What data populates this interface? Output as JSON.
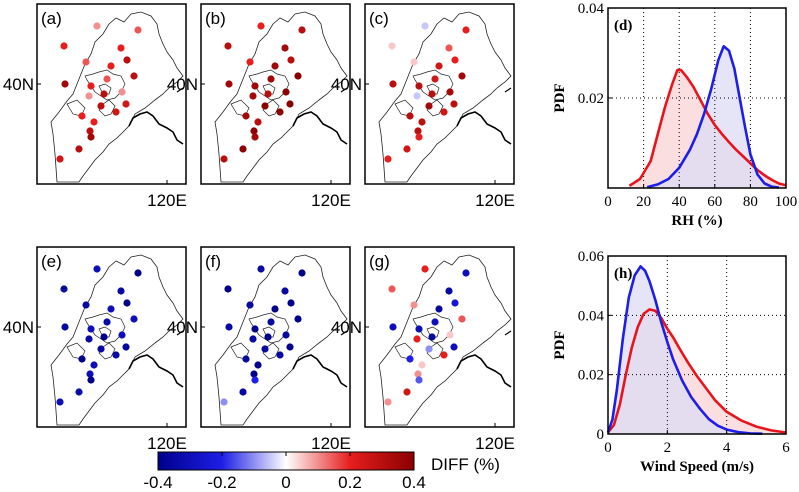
{
  "maps": {
    "lat_label": "40N",
    "lon_label": "120E",
    "panels": [
      {
        "label": "(a)",
        "values": [
          0.1,
          0.2,
          0.2,
          0.15,
          0.3,
          0.15,
          0.2,
          0.35,
          0.3,
          0.15,
          0.2,
          0.1,
          0.3,
          0.1,
          0.25,
          0.3,
          0.2,
          0.2,
          0.25,
          0.3,
          0.25,
          0.3,
          0.35
        ]
      },
      {
        "label": "(b)",
        "values": [
          0.2,
          0.3,
          0.35,
          0.3,
          0.3,
          0.2,
          0.35,
          0.35,
          0.4,
          0.35,
          0.35,
          0.35,
          0.3,
          0.4,
          0.4,
          0.4,
          0.35,
          0.3,
          0.4,
          0.4,
          0.3,
          0.4,
          0.35
        ]
      },
      {
        "label": "(c)",
        "values": [
          -0.05,
          0.05,
          0.15,
          0.2,
          0.2,
          0.05,
          0.25,
          0.3,
          0.35,
          0.25,
          0.3,
          -0.05,
          0.3,
          0.35,
          0.3,
          0.35,
          0.3,
          0.3,
          0.25,
          0.3,
          0.2,
          0.25,
          0.2
        ]
      },
      {
        "label": "(e)",
        "values": [
          -0.3,
          -0.35,
          -0.35,
          -0.4,
          -0.4,
          -0.35,
          -0.3,
          -0.35,
          -0.3,
          -0.35,
          -0.3,
          -0.35,
          -0.4,
          -0.3,
          -0.35,
          -0.35,
          -0.4,
          -0.3,
          -0.35,
          -0.3,
          -0.3,
          -0.35,
          -0.4
        ]
      },
      {
        "label": "(f)",
        "values": [
          -0.35,
          -0.4,
          -0.35,
          -0.4,
          -0.4,
          -0.35,
          -0.4,
          -0.35,
          -0.4,
          -0.35,
          -0.4,
          -0.35,
          -0.4,
          -0.35,
          -0.4,
          -0.35,
          -0.35,
          -0.4,
          -0.35,
          -0.4,
          -0.1,
          -0.35,
          -0.2
        ]
      },
      {
        "label": "(g)",
        "values": [
          0.2,
          0.15,
          -0.35,
          -0.3,
          -0.25,
          0.1,
          -0.35,
          -0.3,
          0.15,
          -0.3,
          -0.3,
          0.2,
          -0.35,
          0.05,
          -0.3,
          -0.1,
          -0.2,
          0.05,
          0.2,
          0.1,
          0.1,
          0.25,
          -0.15
        ]
      }
    ]
  },
  "colorbar": {
    "ticks": [
      "-0.4",
      "-0.2",
      "0",
      "0.2",
      "0.4"
    ],
    "min": -0.4,
    "max": 0.4,
    "label": "DIFF (%)",
    "colors": [
      "#00008b",
      "#1e1ee6",
      "#ffffff",
      "#e61e1e",
      "#8b0000"
    ]
  },
  "chart_data": [
    {
      "type": "area",
      "panel_label": "(d)",
      "xlabel": "RH (%)",
      "ylabel": "PDF",
      "xlim": [
        0,
        100
      ],
      "ylim": [
        0,
        0.04
      ],
      "xticks": [
        0,
        20,
        40,
        60,
        80,
        100
      ],
      "yticks": [
        0.02,
        0.04
      ],
      "xtick_labels": [
        "0",
        "20",
        "40",
        "60",
        "80",
        "100"
      ],
      "ytick_labels": [
        "0.02",
        "0.04"
      ],
      "grid": true,
      "series": [
        {
          "name": "red",
          "color": "#e8141c",
          "fill": "#f8d3d5",
          "x": [
            12,
            18,
            24,
            28,
            32,
            36,
            39,
            41,
            44,
            48,
            52,
            56,
            60,
            64,
            68,
            72,
            76,
            80,
            84,
            88,
            92,
            96,
            100
          ],
          "y": [
            0.0005,
            0.002,
            0.006,
            0.012,
            0.018,
            0.023,
            0.0262,
            0.0262,
            0.0248,
            0.0225,
            0.0195,
            0.0165,
            0.014,
            0.012,
            0.0102,
            0.0085,
            0.007,
            0.0055,
            0.004,
            0.0028,
            0.0018,
            0.001,
            0.0006
          ]
        },
        {
          "name": "blue",
          "color": "#1e1ee6",
          "fill": "#dcdcf4",
          "x": [
            22,
            28,
            34,
            40,
            46,
            50,
            54,
            58,
            62,
            65,
            68,
            71,
            74,
            77,
            80,
            84,
            88,
            92,
            96
          ],
          "y": [
            0.0002,
            0.0008,
            0.002,
            0.0045,
            0.0085,
            0.012,
            0.0165,
            0.022,
            0.0285,
            0.0315,
            0.0305,
            0.0265,
            0.02,
            0.0135,
            0.0075,
            0.003,
            0.001,
            0.0003,
            0.0001
          ]
        }
      ]
    },
    {
      "type": "area",
      "panel_label": "(h)",
      "xlabel": "Wind Speed (m/s)",
      "ylabel": "PDF",
      "xlim": [
        0,
        6
      ],
      "ylim": [
        0,
        0.06
      ],
      "xticks": [
        0,
        2,
        4,
        6
      ],
      "yticks": [
        0,
        0.02,
        0.04,
        0.06
      ],
      "xtick_labels": [
        "0",
        "2",
        "4",
        "6"
      ],
      "ytick_labels": [
        "0",
        "0.02",
        "0.04",
        "0.06"
      ],
      "grid": true,
      "series": [
        {
          "name": "red",
          "color": "#e8141c",
          "fill": "#f8d3d5",
          "x": [
            0,
            0.2,
            0.4,
            0.6,
            0.8,
            1.0,
            1.2,
            1.4,
            1.6,
            1.8,
            2.0,
            2.2,
            2.4,
            2.7,
            3.0,
            3.3,
            3.6,
            4.0,
            4.5,
            5.0,
            5.5,
            6.0
          ],
          "y": [
            0.0005,
            0.003,
            0.01,
            0.02,
            0.029,
            0.036,
            0.0405,
            0.042,
            0.0415,
            0.039,
            0.0355,
            0.0325,
            0.029,
            0.024,
            0.0195,
            0.0155,
            0.0115,
            0.0075,
            0.0045,
            0.0025,
            0.0012,
            0.0005
          ]
        },
        {
          "name": "blue",
          "color": "#1e1ee6",
          "fill": "#dcdcf4",
          "x": [
            0,
            0.15,
            0.3,
            0.5,
            0.7,
            0.9,
            1.1,
            1.25,
            1.4,
            1.6,
            1.8,
            2.0,
            2.2,
            2.5,
            2.8,
            3.1,
            3.4,
            3.7,
            4.0,
            4.4,
            4.8,
            5.2
          ],
          "y": [
            0.0005,
            0.005,
            0.015,
            0.032,
            0.046,
            0.0535,
            0.0565,
            0.055,
            0.0515,
            0.045,
            0.0375,
            0.031,
            0.025,
            0.018,
            0.0125,
            0.0085,
            0.005,
            0.0028,
            0.0015,
            0.0006,
            0.0002,
            0.0001
          ]
        }
      ]
    }
  ]
}
